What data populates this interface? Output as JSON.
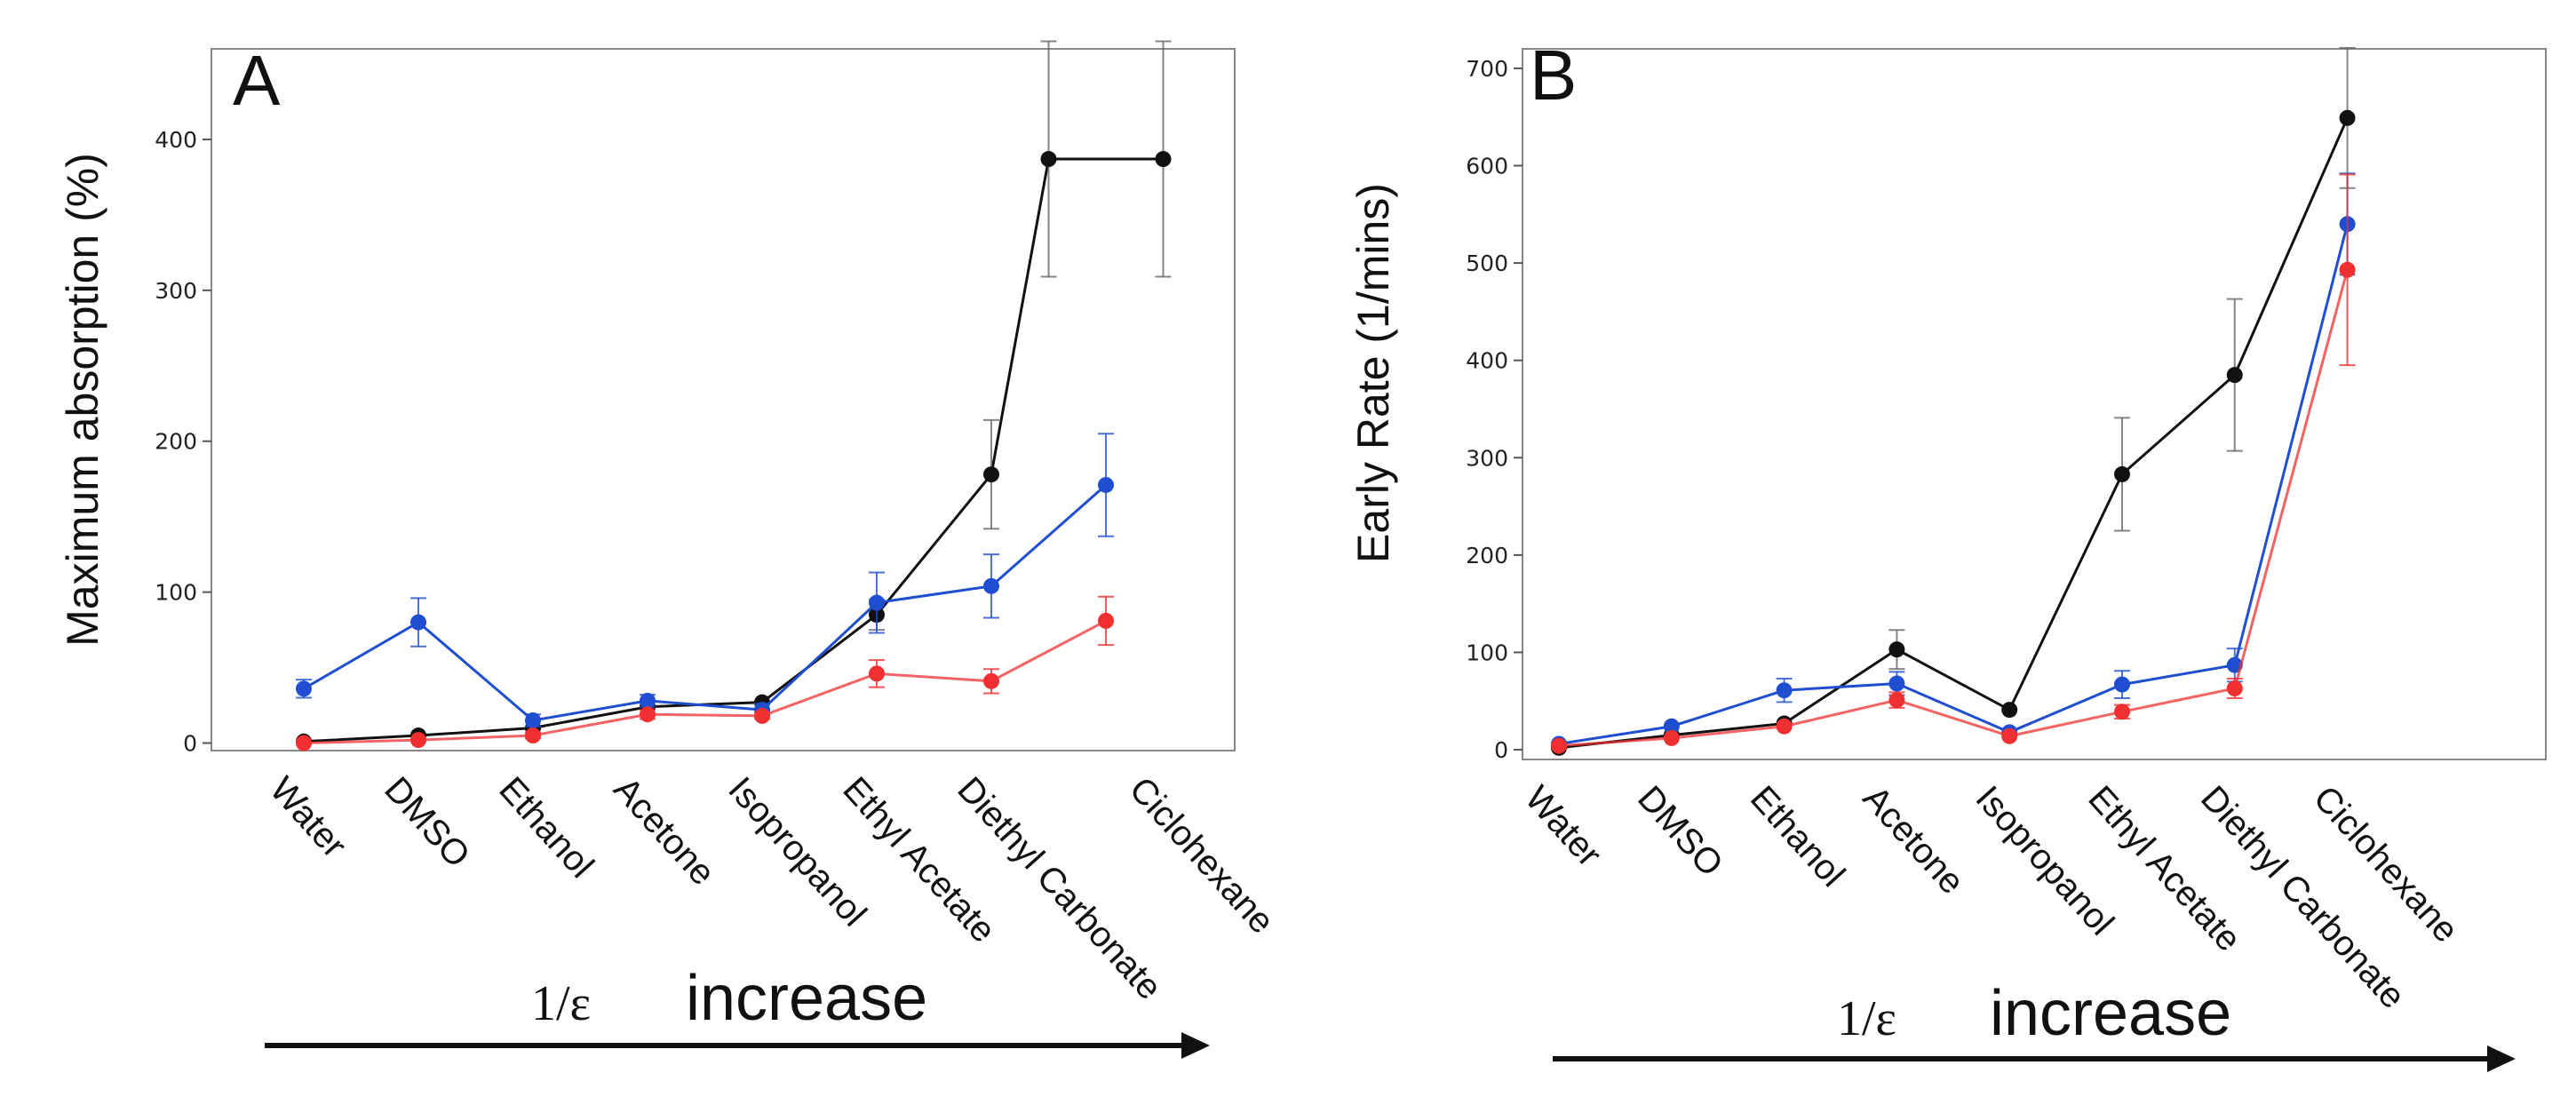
{
  "chart_data": [
    {
      "type": "line",
      "panel_label": "A",
      "ylabel": "Maximum absorption (%)",
      "xlabel": "",
      "ylim": [
        -5,
        460
      ],
      "yticks": [
        0,
        100,
        200,
        300,
        400
      ],
      "categories": [
        "Water",
        "DMSO",
        "Ethanol",
        "Acetone",
        "Isopropanol",
        "Ethyl Acetate",
        "Diethyl Carbonate",
        "Ciclohexane"
      ],
      "category_positions": [
        0,
        1,
        2,
        3,
        4,
        5,
        6,
        7.5
      ],
      "series": [
        {
          "name": "black",
          "color": "#111111",
          "x": [
            0,
            1,
            2,
            3,
            4,
            5,
            6,
            6.5,
            7.5
          ],
          "values": [
            1,
            5,
            10,
            24,
            27,
            85,
            178,
            387,
            387
          ],
          "err": [
            0,
            0,
            0,
            0,
            0,
            10,
            36,
            78,
            78
          ]
        },
        {
          "name": "blue",
          "color": "#1f4fd0",
          "x": [
            0,
            1,
            2,
            3,
            4,
            5,
            6,
            7
          ],
          "values": [
            36,
            80,
            15,
            28,
            22,
            93,
            104,
            171
          ],
          "err": [
            6,
            16,
            4,
            4,
            4,
            20,
            21,
            34
          ]
        },
        {
          "name": "red",
          "color": "#f03030",
          "x": [
            0,
            1,
            2,
            3,
            4,
            5,
            6,
            7
          ],
          "values": [
            0,
            2,
            5,
            19,
            18,
            46,
            41,
            81
          ],
          "err": [
            0,
            0,
            2,
            3,
            2,
            9,
            8,
            16
          ]
        }
      ],
      "arrow_label_symbol": "1/ε",
      "arrow_label_text": "increase"
    },
    {
      "type": "line",
      "panel_label": "B",
      "ylabel": "Early Rate (1/mins)",
      "xlabel": "",
      "ylim": [
        -10,
        720
      ],
      "yticks": [
        0,
        100,
        200,
        300,
        400,
        500,
        600,
        700
      ],
      "categories": [
        "Water",
        "DMSO",
        "Ethanol",
        "Acetone",
        "Isopropanol",
        "Ethyl Acetate",
        "Diethyl Carbonate",
        "Ciclohexane"
      ],
      "category_positions": [
        0,
        1,
        2,
        3,
        4,
        5,
        6,
        7
      ],
      "series": [
        {
          "name": "black",
          "color": "#111111",
          "values": [
            2,
            15,
            27,
            103,
            41,
            283,
            385,
            649
          ],
          "err": [
            0,
            0,
            0,
            20,
            0,
            58,
            78,
            72
          ]
        },
        {
          "name": "blue",
          "color": "#1f4fd0",
          "values": [
            6,
            24,
            61,
            68,
            18,
            67,
            87,
            540
          ],
          "err": [
            0,
            0,
            12,
            12,
            0,
            14,
            17,
            52
          ]
        },
        {
          "name": "red",
          "color": "#f03030",
          "values": [
            4,
            12,
            24,
            51,
            14,
            39,
            63,
            493
          ],
          "err": [
            0,
            0,
            0,
            8,
            0,
            7,
            10,
            98
          ]
        }
      ],
      "arrow_label_symbol": "1/ε",
      "arrow_label_text": "increase"
    }
  ]
}
